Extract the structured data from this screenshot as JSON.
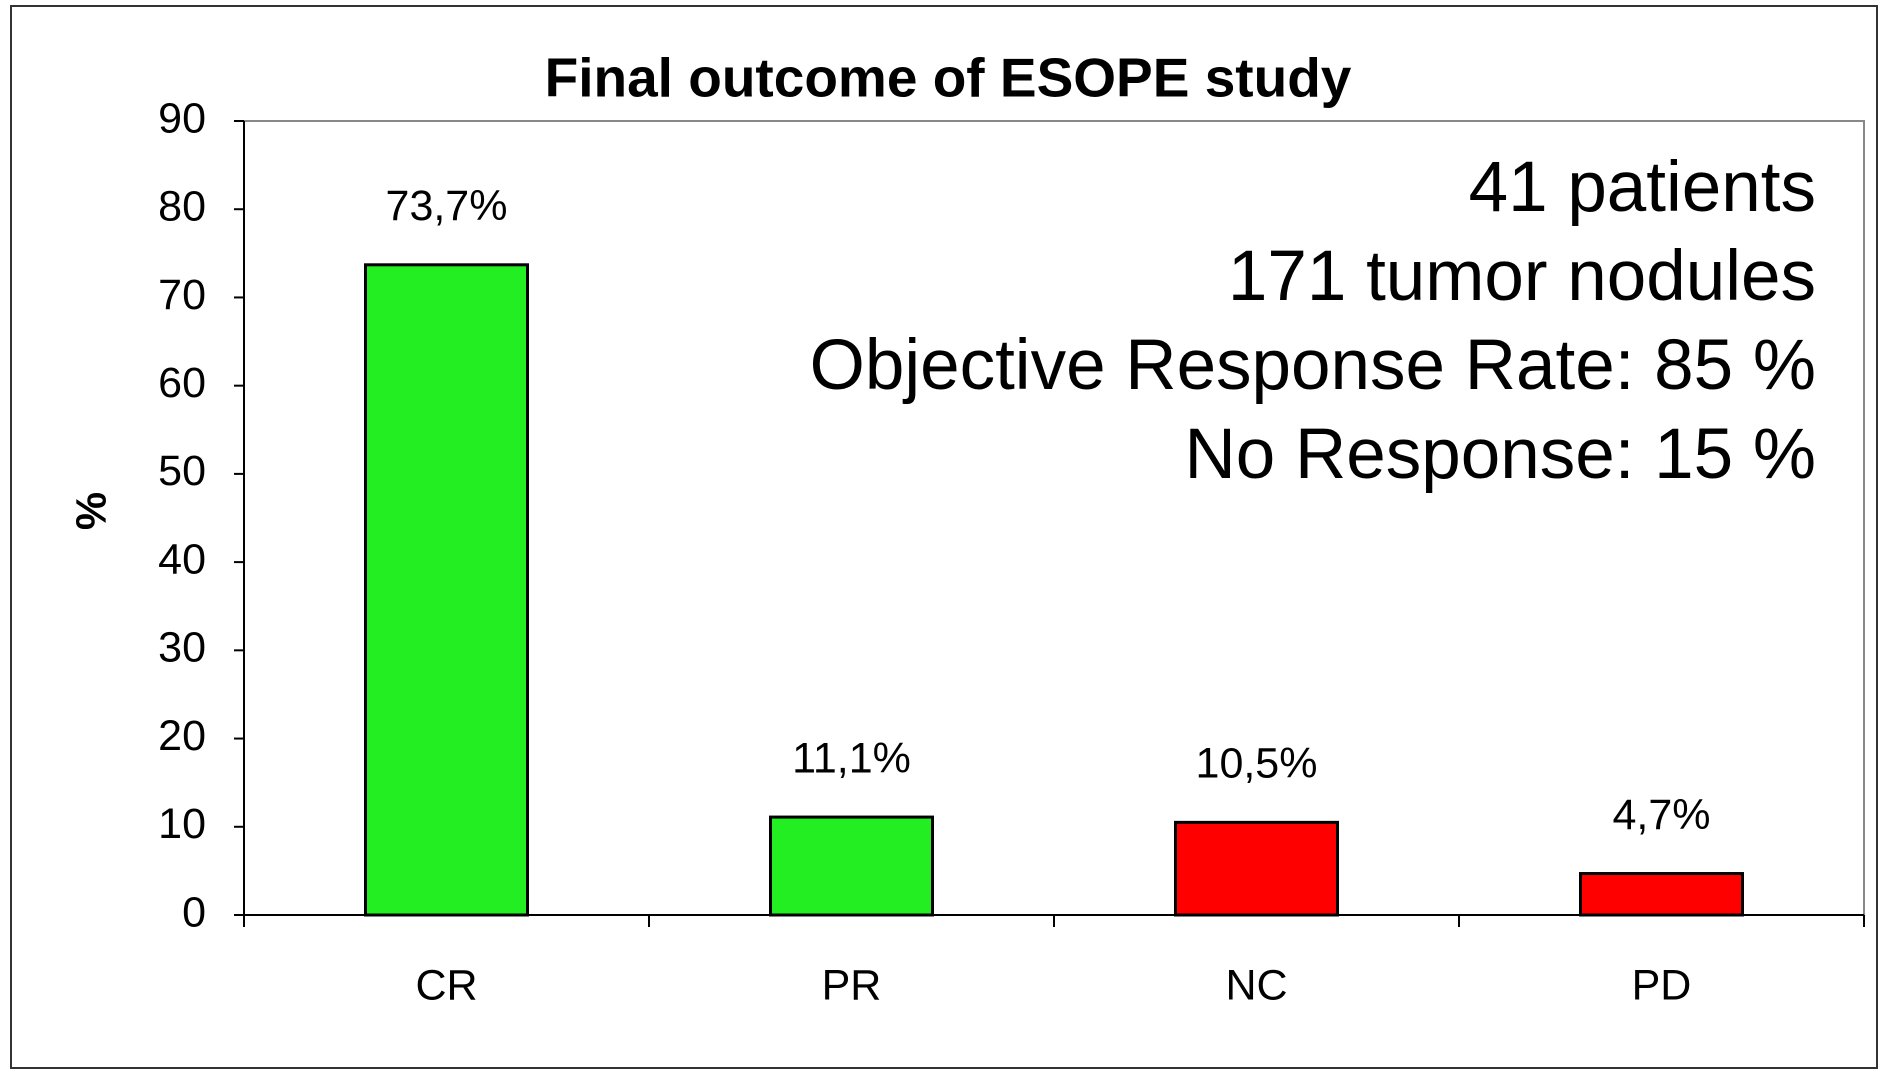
{
  "chart_data": {
    "type": "bar",
    "title": "Final outcome of ESOPE study",
    "y_label": "%",
    "categories": [
      "CR",
      "PR",
      "NC",
      "PD"
    ],
    "values": [
      73.7,
      11.1,
      10.5,
      4.7
    ],
    "value_labels": [
      "73,7%",
      "11,1%",
      "10,5%",
      "4,7%"
    ],
    "colors": [
      "#22ee22",
      "#22ee22",
      "#ff0000",
      "#ff0000"
    ],
    "ylim": [
      0,
      90
    ],
    "yticks": [
      0,
      10,
      20,
      30,
      40,
      50,
      60,
      70,
      80,
      90
    ],
    "grid": false,
    "annotations": [
      "41 patients",
      "171 tumor nodules",
      "Objective Response Rate: 85 %",
      "No Response: 15 %"
    ]
  }
}
